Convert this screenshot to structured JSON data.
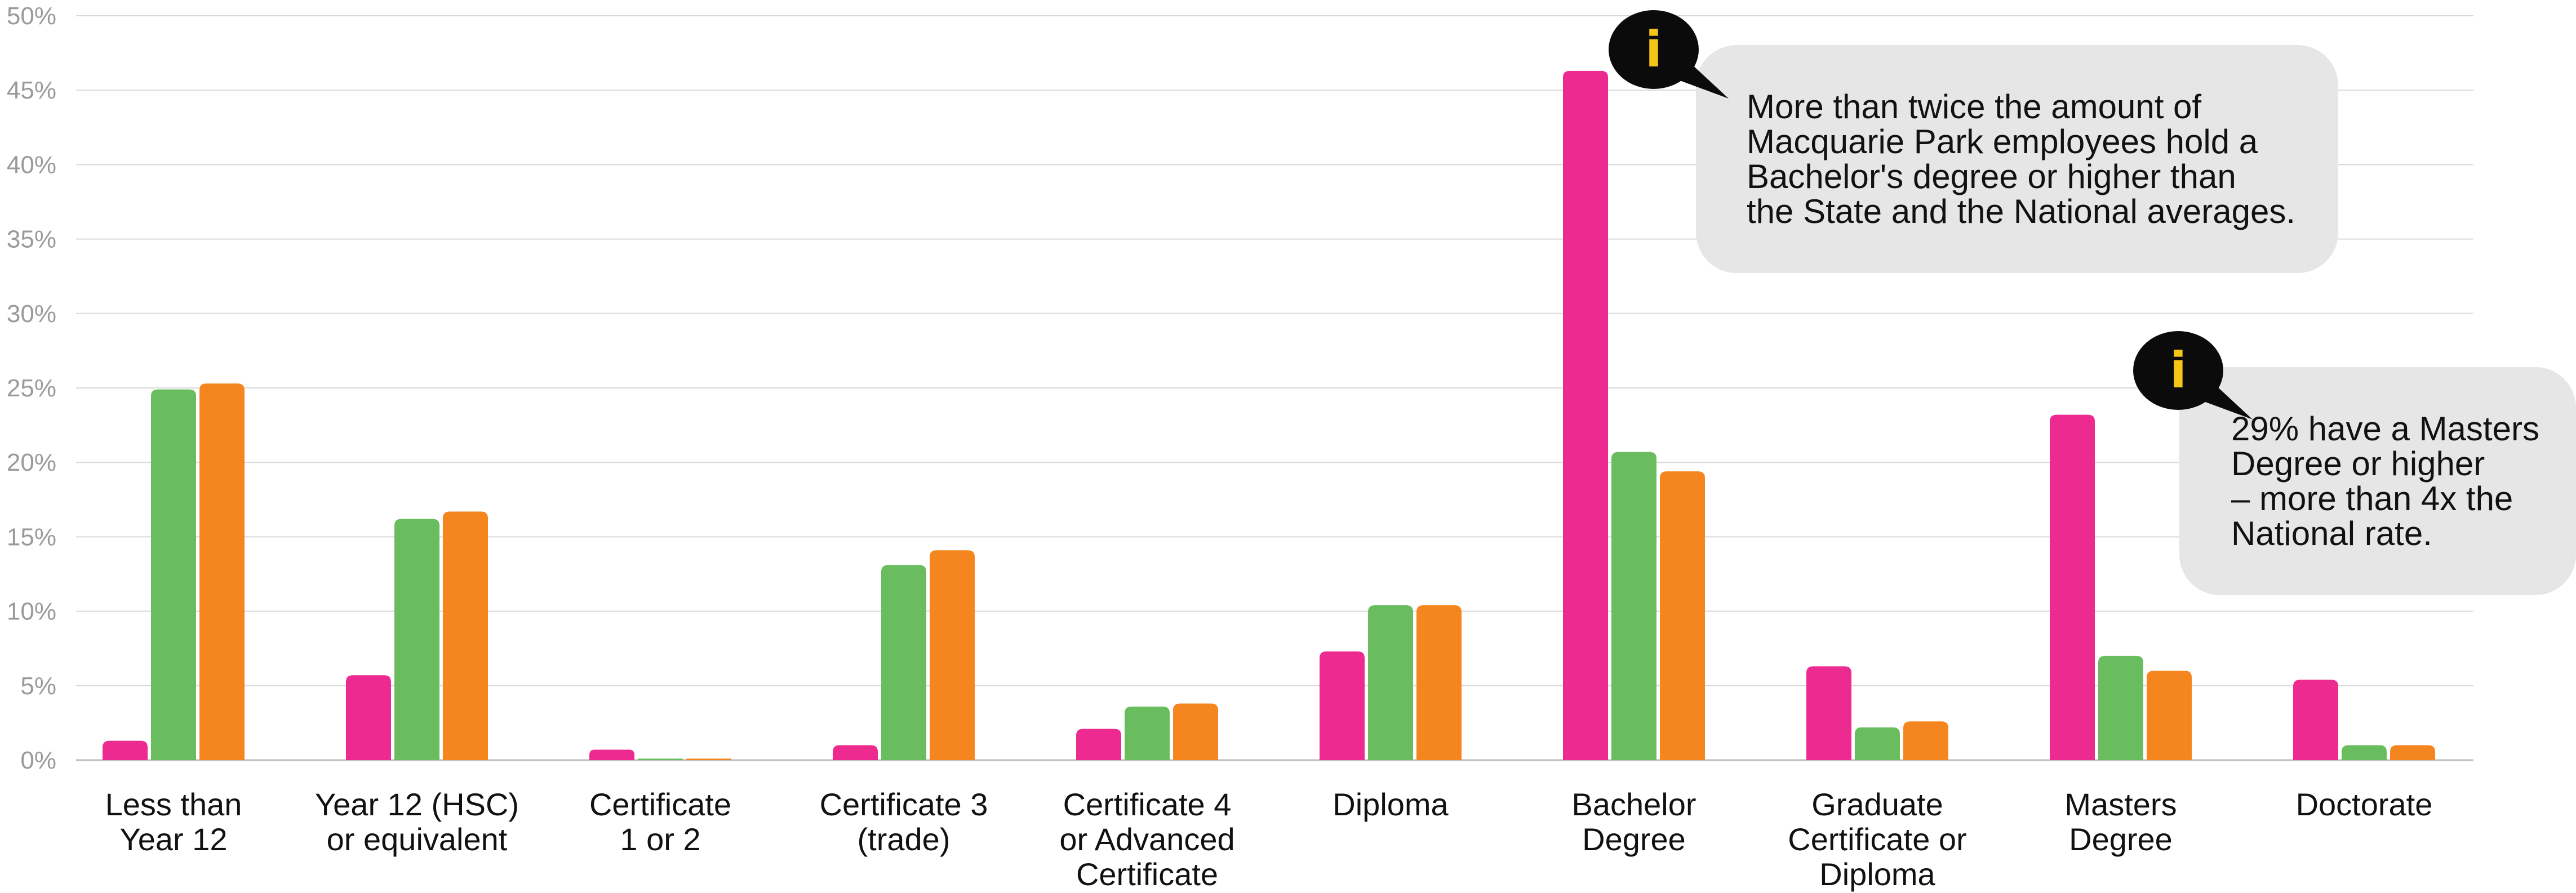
{
  "colors": {
    "series": [
      "#ec2a8f",
      "#69bd5f",
      "#f5861f"
    ],
    "grid": "#d9d9d9",
    "axis": "#bdbdbd",
    "callout_bg": "#e6e6e7",
    "bubble_bg": "#0b0b0b",
    "bubble_glyph": "#f5c518"
  },
  "chart_data": {
    "type": "bar",
    "title": "",
    "xlabel": "",
    "ylabel": "",
    "ylim": [
      0,
      50
    ],
    "yticks": [
      "0%",
      "5%",
      "10%",
      "15%",
      "20%",
      "25%",
      "30%",
      "35%",
      "40%",
      "45%",
      "50%"
    ],
    "grid": true,
    "legend": "none",
    "categories": [
      [
        "Less than",
        "Year 12"
      ],
      [
        "Year 12 (HSC)",
        "or equivalent"
      ],
      [
        "Certificate",
        "1 or 2"
      ],
      [
        "Certificate 3",
        "(trade)"
      ],
      [
        "Certificate 4",
        "or Advanced",
        "Certificate"
      ],
      [
        "Diploma"
      ],
      [
        "Bachelor",
        "Degree"
      ],
      [
        "Graduate",
        "Certificate or",
        "Diploma"
      ],
      [
        "Masters",
        "Degree"
      ],
      [
        "Doctorate"
      ]
    ],
    "series": [
      {
        "values": [
          1.3,
          5.7,
          0.7,
          1.0,
          2.1,
          7.3,
          46.3,
          6.3,
          23.2,
          5.4
        ]
      },
      {
        "values": [
          24.9,
          16.2,
          0.1,
          13.1,
          3.6,
          10.4,
          20.7,
          2.2,
          7.0,
          1.0
        ]
      },
      {
        "values": [
          25.3,
          16.7,
          0.1,
          14.1,
          3.8,
          10.4,
          19.4,
          2.6,
          6.0,
          1.0
        ]
      }
    ],
    "annotations": [
      {
        "icon": "info-icon",
        "lines": [
          "More than twice the amount of",
          "Macquarie Park employees hold a",
          "Bachelor's degree or higher than",
          "the State and the National averages."
        ]
      },
      {
        "icon": "info-icon",
        "lines": [
          "29% have a Masters",
          "Degree or higher",
          "– more than 4x the",
          "National rate."
        ]
      }
    ]
  }
}
